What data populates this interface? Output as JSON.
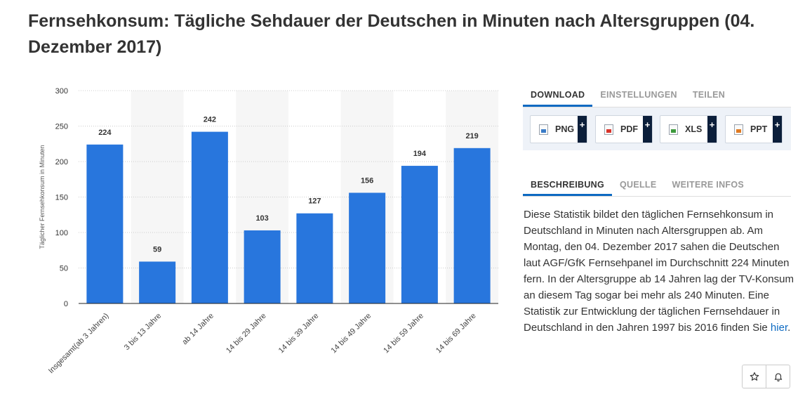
{
  "page": {
    "title": "Fernsehkonsum: Tägliche Sehdauer der Deutschen in Minuten nach Altersgruppen (04. Dezember 2017)"
  },
  "chart_data": {
    "type": "bar",
    "title": "",
    "xlabel": "",
    "ylabel": "Täglicher Fernsehkonsum in Minuten",
    "categories": [
      "Insgesamt(ab 3 Jahren)",
      "3 bis 13 Jahre",
      "ab 14 Jahre",
      "14 bis 29 Jahre",
      "14 bis 39 Jahre",
      "14 bis 49 Jahre",
      "14 bis 59 Jahre",
      "14 bis 69 Jahre"
    ],
    "values": [
      224,
      59,
      242,
      103,
      127,
      156,
      194,
      219
    ],
    "ylim": [
      0,
      300
    ],
    "yticks": [
      0,
      50,
      100,
      150,
      200,
      250,
      300
    ],
    "grid": true,
    "data_labels": true,
    "legend": "none",
    "colors": {
      "bar": "#2876dd",
      "band": "#f6f6f6",
      "grid": "#cccccc"
    }
  },
  "download_tabs": [
    {
      "label": "DOWNLOAD",
      "active": true
    },
    {
      "label": "EINSTELLUNGEN",
      "active": false
    },
    {
      "label": "TEILEN",
      "active": false
    }
  ],
  "download_buttons": [
    {
      "label": "PNG",
      "icon": "png-file-icon"
    },
    {
      "label": "PDF",
      "icon": "pdf-file-icon"
    },
    {
      "label": "XLS",
      "icon": "xls-file-icon"
    },
    {
      "label": "PPT",
      "icon": "ppt-file-icon"
    }
  ],
  "download_plus": "+",
  "info_tabs": [
    {
      "label": "BESCHREIBUNG",
      "active": true
    },
    {
      "label": "QUELLE",
      "active": false
    },
    {
      "label": "WEITERE INFOS",
      "active": false
    }
  ],
  "description": {
    "text": "Diese Statistik bildet den täglichen Fernsehkonsum in Deutschland in Minuten nach Altersgruppen ab. Am Montag, den 04. Dezember 2017 sahen die Deutschen laut AGF/GfK Fernsehpanel im Durchschnitt 224 Minuten fern. In der Altersgruppe ab 14 Jahren lag der TV-Konsum an diesem Tag sogar bei mehr als 240 Minuten. Eine Statistik zur Entwicklung der täglichen Fernsehdauer in Deutschland in den Jahren 1997 bis 2016 finden Sie ",
    "link_text": "hier",
    "suffix": "."
  },
  "actions": {
    "favorite_icon": "star-icon",
    "notify_icon": "bell-icon"
  }
}
